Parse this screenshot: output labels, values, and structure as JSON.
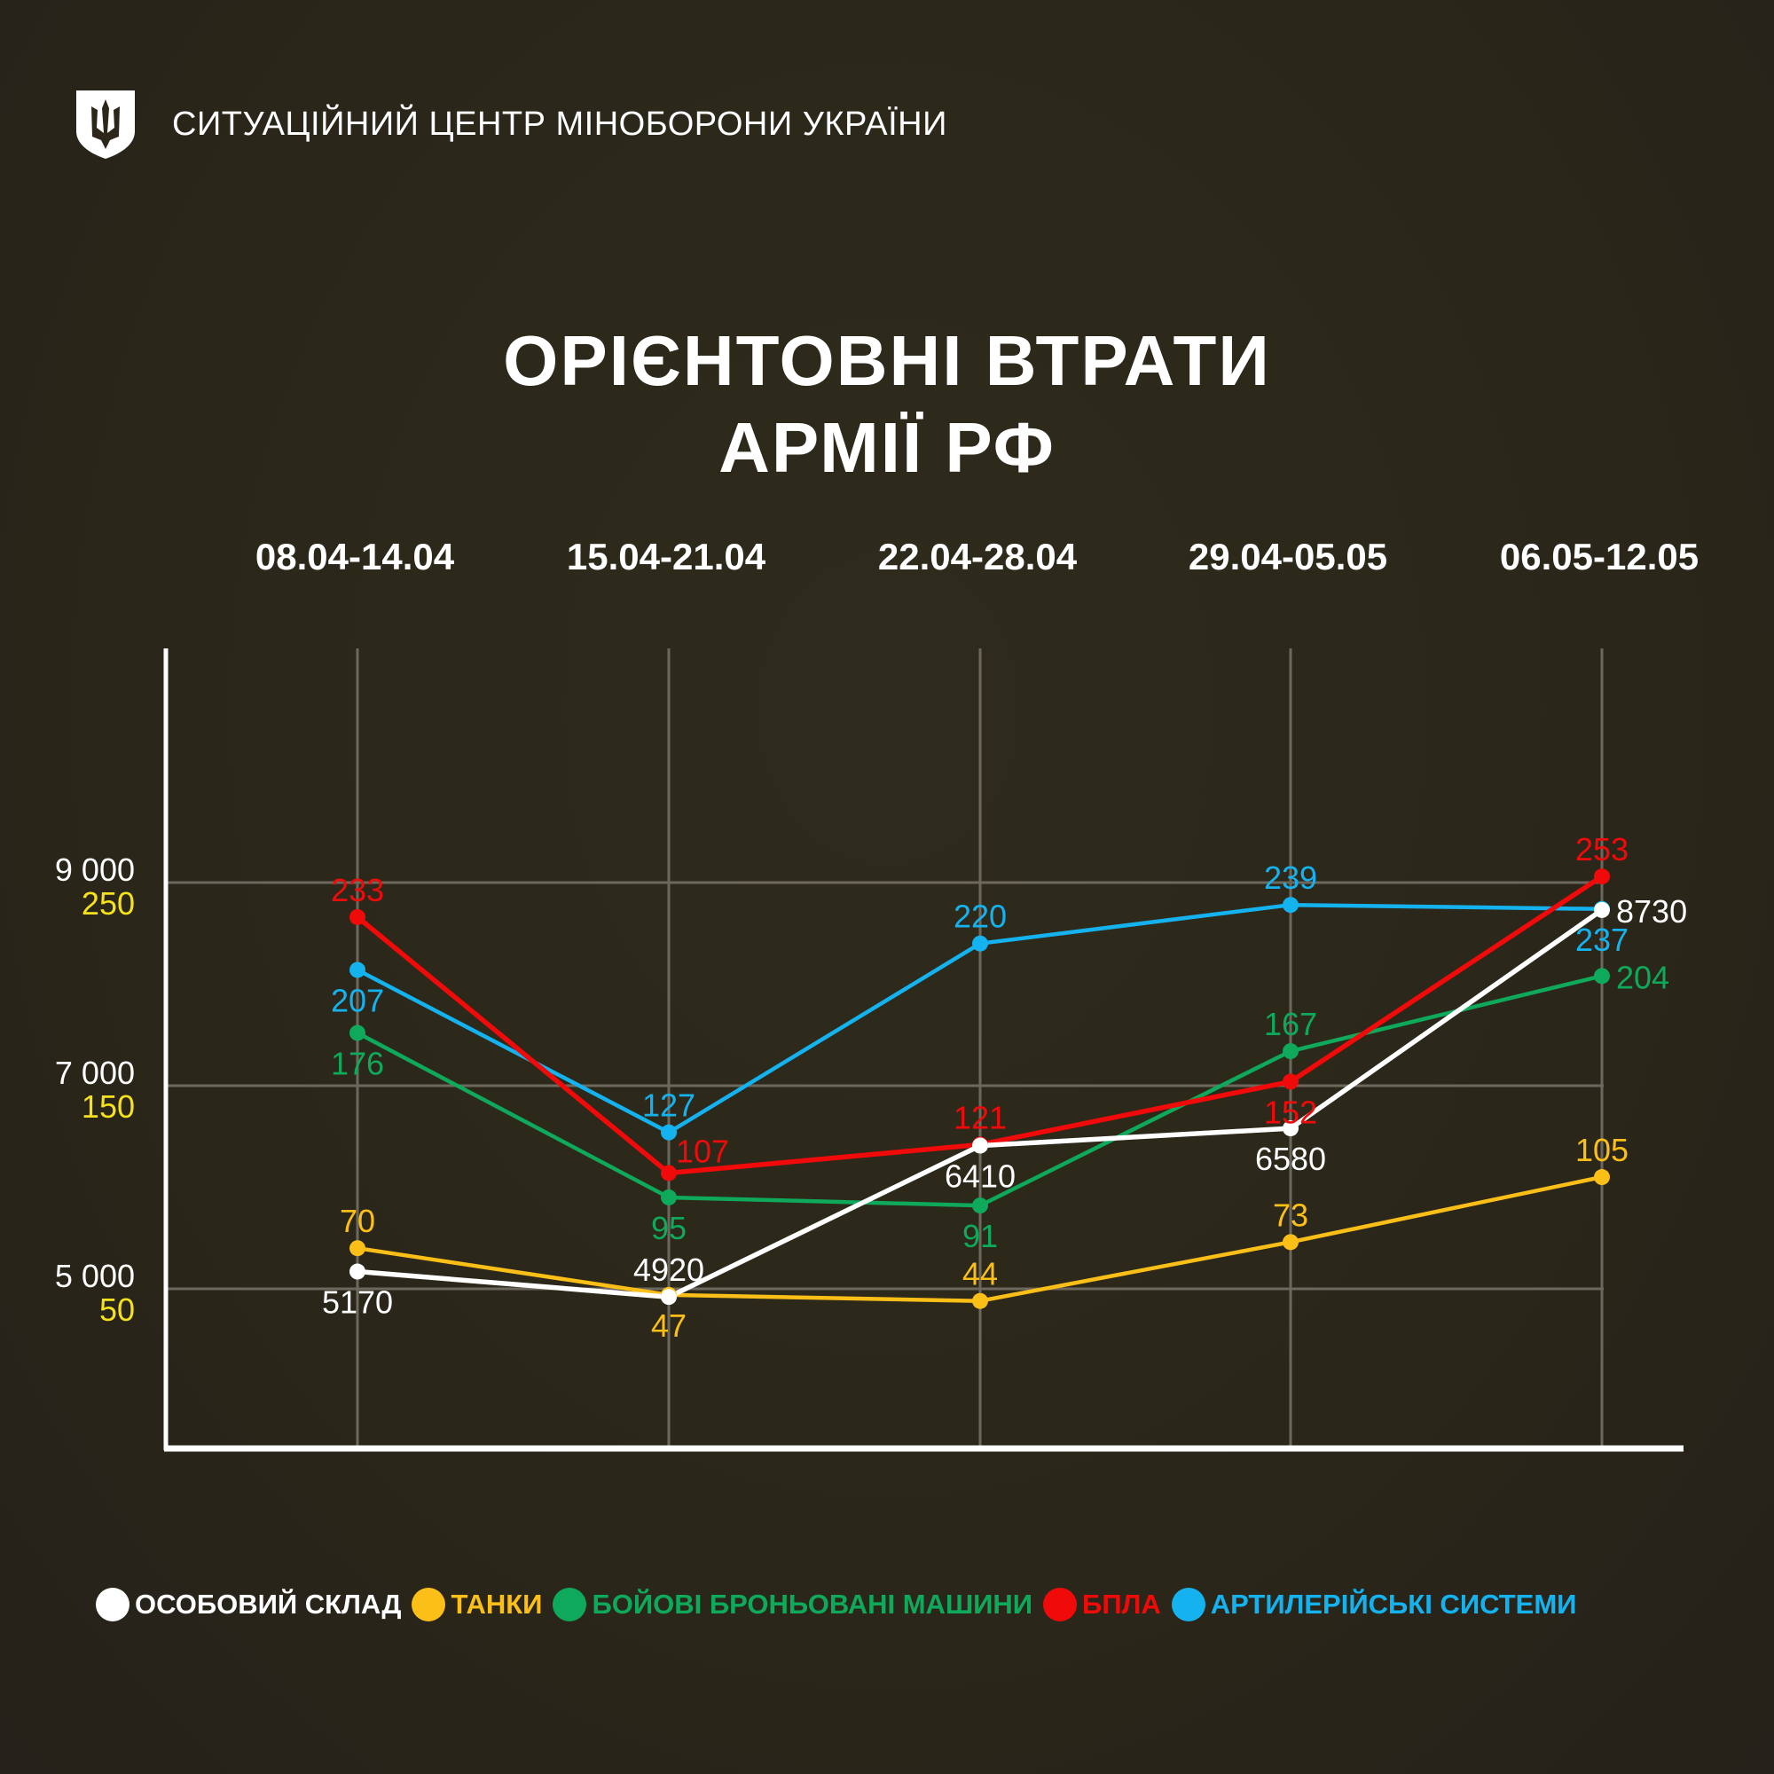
{
  "header": {
    "logo": "trident-shield-icon",
    "org_name": "СИТУАЦІЙНИЙ ЦЕНТР МІНОБОРОНИ УКРАЇНИ"
  },
  "title": {
    "line1": "ОРІЄНТОВНІ ВТРАТИ",
    "line2": "АРМІЇ РФ"
  },
  "y_axis": {
    "primary_ticks": [
      "9 000",
      "7 000",
      "5 000"
    ],
    "secondary_ticks": [
      "250",
      "150",
      "50"
    ],
    "primary_color": "#ffffff",
    "secondary_color": "#f5e21b"
  },
  "legend": [
    {
      "label": "ОСОБОВИЙ СКЛАД",
      "color": "#ffffff"
    },
    {
      "label": "ТАНКИ",
      "color": "#fbbf17"
    },
    {
      "label": "БОЙОВІ БРОНЬОВАНІ МАШИНИ",
      "color": "#0fa95b"
    },
    {
      "label": "БПЛА",
      "color": "#f00a0a"
    },
    {
      "label": "АРТИЛЕРІЙСЬКІ СИСТЕМИ",
      "color": "#14b3ef"
    }
  ],
  "chart_data": {
    "type": "line",
    "title": "ОРІЄНТОВНІ ВТРАТИ АРМІЇ РФ",
    "categories": [
      "08.04-14.04",
      "15.04-21.04",
      "22.04-28.04",
      "29.04-05.05",
      "06.05-12.05"
    ],
    "xlabel": "",
    "ylabel": "",
    "primary_axis": {
      "ticks": [
        5000,
        7000,
        9000
      ],
      "applies_to": [
        "ОСОБОВИЙ СКЛАД"
      ]
    },
    "secondary_axis": {
      "ticks": [
        50,
        150,
        250
      ],
      "applies_to": [
        "ТАНКИ",
        "БОЙОВІ БРОНЬОВАНІ МАШИНИ",
        "БПЛА",
        "АРТИЛЕРІЙСЬКІ СИСТЕМИ"
      ]
    },
    "grid": true,
    "legend_position": "bottom",
    "series": [
      {
        "name": "ОСОБОВИЙ СКЛАД",
        "color": "#ffffff",
        "axis": "primary",
        "values": [
          5170,
          4920,
          6410,
          6580,
          8730
        ],
        "label_pos": [
          "below",
          "above",
          "below",
          "below",
          "right"
        ]
      },
      {
        "name": "ТАНКИ",
        "color": "#fbbf17",
        "axis": "secondary",
        "values": [
          70,
          47,
          44,
          73,
          105
        ],
        "label_pos": [
          "above",
          "below",
          "above",
          "above",
          "above"
        ]
      },
      {
        "name": "БОЙОВІ БРОНЬОВАНІ МАШИНИ",
        "color": "#0fa95b",
        "axis": "secondary",
        "values": [
          176,
          95,
          91,
          167,
          204
        ],
        "label_pos": [
          "below",
          "below",
          "below",
          "above",
          "right"
        ]
      },
      {
        "name": "БПЛА",
        "color": "#f00a0a",
        "axis": "secondary",
        "values": [
          233,
          107,
          121,
          152,
          253
        ],
        "label_pos": [
          "above",
          "aboveright",
          "above",
          "below",
          "above"
        ]
      },
      {
        "name": "АРТИЛЕРІЙСЬКІ СИСТЕМИ",
        "color": "#14b3ef",
        "axis": "secondary",
        "values": [
          207,
          127,
          220,
          239,
          237
        ],
        "label_pos": [
          "below",
          "above",
          "above",
          "above",
          "below"
        ]
      }
    ]
  }
}
